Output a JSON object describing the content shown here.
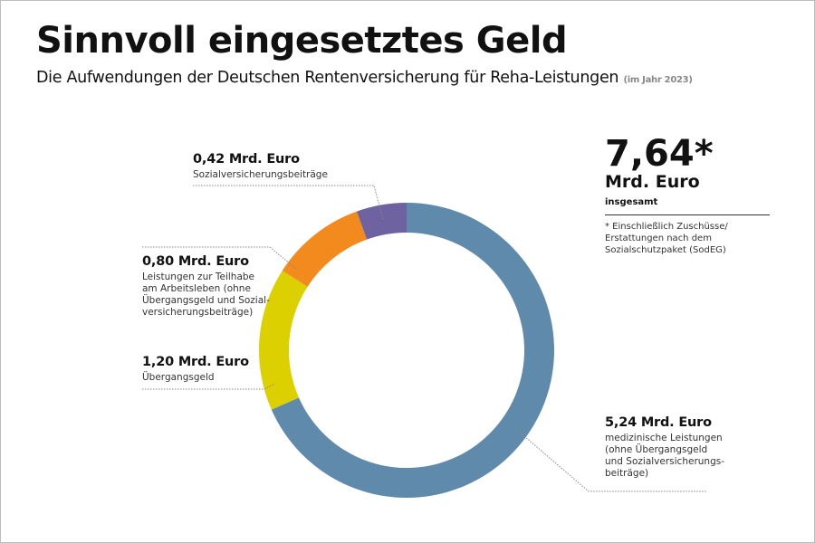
{
  "header": {
    "title": "Sinnvoll eingesetztes Geld",
    "subtitle": "Die Aufwendungen der Deutschen Rentenversicherung für Reha-Leistungen",
    "subtitle_note": "(im Jahr 2023)"
  },
  "total": {
    "value": "7,64*",
    "unit": "Mrd. Euro",
    "label": "insgesamt",
    "footnote": "* Einschließlich Zuschüsse/\n  Erstattungen nach dem\n  Sozialschutzpaket (SodEG)"
  },
  "chart_data": {
    "type": "pie",
    "variant": "donut",
    "unit": "Mrd. Euro",
    "start": "top",
    "direction": "clockwise",
    "slices": [
      {
        "value": 5.24,
        "label": "5,24 Mrd. Euro",
        "desc": "medizinische Leistungen\n(ohne Übergangsgeld\nund Sozialversicherungs-\nbeiträge)",
        "color": "#5f8aab"
      },
      {
        "value": 1.2,
        "label": "1,20 Mrd. Euro",
        "desc": "Übergangsgeld",
        "color": "#ddd000"
      },
      {
        "value": 0.8,
        "label": "0,80 Mrd. Euro",
        "desc": "Leistungen zur Teilhabe\nam Arbeitsleben (ohne\nÜbergangsgeld und Sozial-\nversicherungsbeiträge)",
        "color": "#f28a1e"
      },
      {
        "value": 0.42,
        "label": "0,42 Mrd. Euro",
        "desc": "Sozialversicherungsbeiträge",
        "color": "#6e63a0"
      }
    ]
  }
}
